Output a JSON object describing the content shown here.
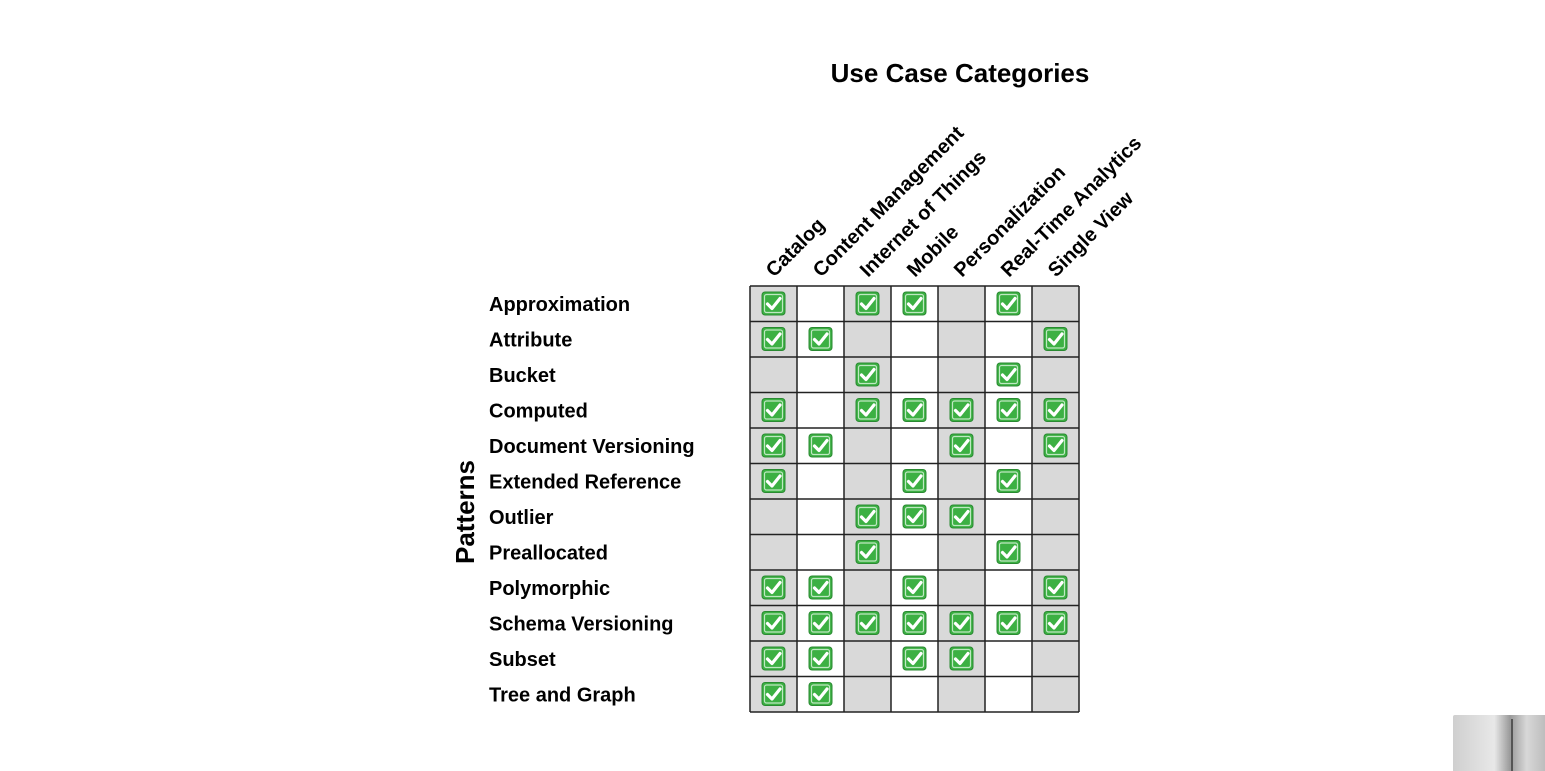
{
  "title": "Use Case Categories",
  "axis_label": "Patterns",
  "columns": [
    "Catalog",
    "Content Management",
    "Internet of Things",
    "Mobile",
    "Personalization",
    "Real-Time Analytics",
    "Single View"
  ],
  "rows": [
    {
      "label": "Approximation",
      "checks": [
        1,
        0,
        1,
        1,
        0,
        1,
        0
      ]
    },
    {
      "label": "Attribute",
      "checks": [
        1,
        1,
        0,
        0,
        0,
        0,
        1
      ]
    },
    {
      "label": "Bucket",
      "checks": [
        0,
        0,
        1,
        0,
        0,
        1,
        0
      ]
    },
    {
      "label": "Computed",
      "checks": [
        1,
        0,
        1,
        1,
        1,
        1,
        1
      ]
    },
    {
      "label": "Document Versioning",
      "checks": [
        1,
        1,
        0,
        0,
        1,
        0,
        1
      ]
    },
    {
      "label": "Extended Reference",
      "checks": [
        1,
        0,
        0,
        1,
        0,
        1,
        0
      ]
    },
    {
      "label": "Outlier",
      "checks": [
        0,
        0,
        1,
        1,
        1,
        0,
        0
      ]
    },
    {
      "label": "Preallocated",
      "checks": [
        0,
        0,
        1,
        0,
        0,
        1,
        0
      ]
    },
    {
      "label": "Polymorphic",
      "checks": [
        1,
        1,
        0,
        1,
        0,
        0,
        1
      ]
    },
    {
      "label": "Schema Versioning",
      "checks": [
        1,
        1,
        1,
        1,
        1,
        1,
        1
      ]
    },
    {
      "label": "Subset",
      "checks": [
        1,
        1,
        0,
        1,
        1,
        0,
        0
      ]
    },
    {
      "label": "Tree and Graph",
      "checks": [
        1,
        1,
        0,
        0,
        0,
        0,
        0
      ]
    }
  ],
  "colors": {
    "shaded_column": "#d9d9d9",
    "plain_column": "#ffffff",
    "grid_line": "#222222",
    "check_fill": "#3cb043",
    "check_mark": "#ffffff"
  },
  "icons": {
    "check": "green-checkbox-icon"
  }
}
